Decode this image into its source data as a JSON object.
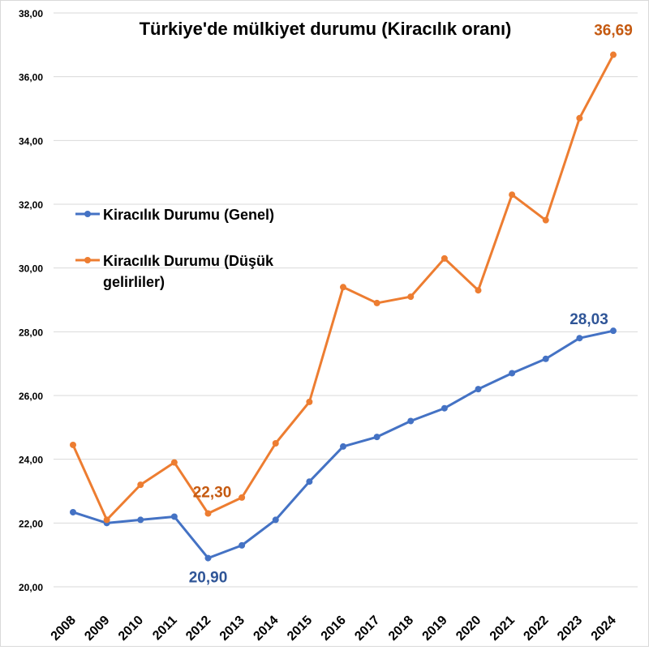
{
  "chart_data": {
    "type": "line",
    "title": "Türkiye'de mülkiyet durumu (Kiracılık oranı)",
    "xlabel": "",
    "ylabel": "",
    "categories": [
      "2008",
      "2009",
      "2010",
      "2011",
      "2012",
      "2013",
      "2014",
      "2015",
      "2016",
      "2017",
      "2018",
      "2019",
      "2020",
      "2021",
      "2022",
      "2023",
      "2024"
    ],
    "ylim": [
      20,
      38
    ],
    "yticks": [
      "20,00",
      "22,00",
      "24,00",
      "26,00",
      "28,00",
      "30,00",
      "32,00",
      "34,00",
      "36,00",
      "38,00"
    ],
    "grid": true,
    "legend_position": "left-middle",
    "series": [
      {
        "name": "Kiracılık Durumu (Genel)",
        "color": "#4472c4",
        "values": [
          22.34,
          22.0,
          22.1,
          22.2,
          20.9,
          21.3,
          22.1,
          23.3,
          24.4,
          24.7,
          25.2,
          25.6,
          26.2,
          26.7,
          27.15,
          27.8,
          28.03
        ]
      },
      {
        "name": "Kiracılık Durumu (Düşük gelirliler)",
        "color": "#ed7d31",
        "values": [
          24.45,
          22.1,
          23.2,
          23.9,
          22.3,
          22.8,
          24.5,
          25.8,
          29.4,
          28.9,
          29.1,
          30.3,
          29.3,
          32.3,
          31.5,
          34.7,
          36.69
        ]
      }
    ],
    "annotations": [
      {
        "text": "22,30",
        "series": 1,
        "category": "2012"
      },
      {
        "text": "36,69",
        "series": 1,
        "category": "2024"
      },
      {
        "text": "20,90",
        "series": 0,
        "category": "2012"
      },
      {
        "text": "28,03",
        "series": 0,
        "category": "2024"
      }
    ]
  }
}
